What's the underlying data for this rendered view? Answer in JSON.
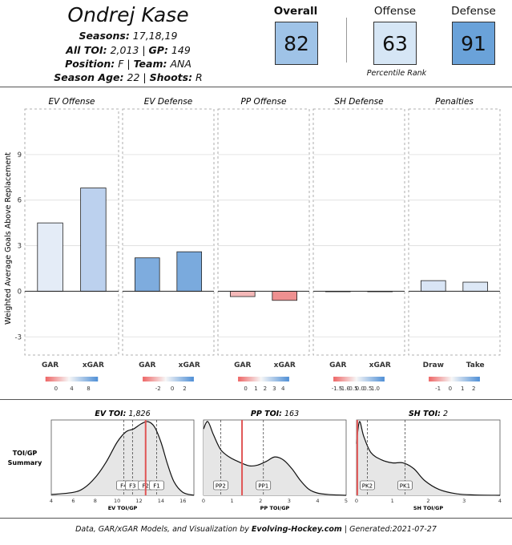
{
  "header": {
    "player_name": "Ondrej Kase",
    "seasons_label": "Seasons:",
    "seasons_value": " 17,18,19",
    "toi_label": "All TOI:",
    "toi_value": " 2,013 | ",
    "gp_label": "GP:",
    "gp_value": " 149",
    "position_label": "Position:",
    "position_value": " F | ",
    "team_label": "Team:",
    "team_value": " ANA",
    "age_label": "Season Age:",
    "age_value": " 22 | ",
    "shoots_label": "Shoots:",
    "shoots_value": " R"
  },
  "scores": {
    "overall_label": "Overall",
    "overall_value": "82",
    "offense_label": "Offense",
    "offense_value": "63",
    "defense_label": "Defense",
    "defense_value": "91",
    "percentile_note": "Percentile Rank",
    "colors": {
      "overall": "#9fc3e7",
      "offense": "#d6e6f5",
      "defense": "#6aa2d9"
    }
  },
  "chart_data": [
    {
      "type": "bar",
      "ylabel": "Weighted Average Goals Above Replacement",
      "ylim": [
        -4.2,
        12
      ],
      "yticks": [
        -3,
        0,
        3,
        6,
        9
      ],
      "panels": [
        {
          "title": "EV Offense",
          "categories": [
            "GAR",
            "xGAR"
          ],
          "values": [
            4.5,
            6.8
          ],
          "colors": [
            "#e4ecf7",
            "#bcd1ee"
          ],
          "legend": {
            "ticks": [
              "0",
              "4",
              "8"
            ],
            "tick_pos": [
              0.2,
              0.5,
              0.82
            ]
          }
        },
        {
          "title": "EV Defense",
          "categories": [
            "GAR",
            "xGAR"
          ],
          "values": [
            2.2,
            2.6
          ],
          "colors": [
            "#7eacde",
            "#7aaadd"
          ],
          "legend": {
            "ticks": [
              "-2",
              "0",
              "2"
            ],
            "tick_pos": [
              0.3,
              0.58,
              0.82
            ]
          }
        },
        {
          "title": "PP Offense",
          "categories": [
            "GAR",
            "xGAR"
          ],
          "values": [
            -0.35,
            -0.6
          ],
          "colors": [
            "#f4b8b8",
            "#ee9090"
          ],
          "legend": {
            "ticks": [
              "0",
              "1",
              "2",
              "3",
              "4"
            ],
            "tick_pos": [
              0.15,
              0.35,
              0.53,
              0.71,
              0.88
            ]
          }
        },
        {
          "title": "SH Defense",
          "categories": [
            "GAR",
            "xGAR"
          ],
          "values": [
            -0.03,
            -0.03
          ],
          "colors": [
            "#f0e4e4",
            "#f0e4e4"
          ],
          "legend": {
            "ticks": [
              "-1.5",
              "-1.0",
              "-0.5",
              "0.0",
              "0.5",
              "1.0"
            ],
            "tick_pos": [
              0.07,
              0.22,
              0.37,
              0.52,
              0.67,
              0.82
            ]
          }
        },
        {
          "title": "Penalties",
          "categories": [
            "Draw",
            "Take"
          ],
          "values": [
            0.7,
            0.6
          ],
          "colors": [
            "#d9e5f5",
            "#dde8f6"
          ],
          "legend": {
            "ticks": [
              "-1",
              "0",
              "1",
              "2"
            ],
            "tick_pos": [
              0.18,
              0.42,
              0.66,
              0.88
            ]
          }
        }
      ]
    },
    {
      "type": "area",
      "row_label_line1": "TOI/GP",
      "row_label_line2": "Summary",
      "panels": [
        {
          "title_label": "EV TOI:",
          "title_value": " 1,826",
          "xlabel": "EV TOI/GP",
          "xlim": [
            4,
            17
          ],
          "xticks": [
            4,
            6,
            8,
            10,
            12,
            14,
            16
          ],
          "player_value": 12.6,
          "markers": [
            {
              "label": "F4",
              "x": 10.6
            },
            {
              "label": "F3",
              "x": 11.4
            },
            {
              "label": "F2",
              "x": 12.6
            },
            {
              "label": "F1",
              "x": 13.6
            }
          ],
          "density_x": [
            4,
            6,
            7,
            8,
            9,
            10,
            10.8,
            11.5,
            12.2,
            12.8,
            13.4,
            14,
            14.6,
            15.2,
            16,
            17
          ],
          "density_y": [
            0.01,
            0.04,
            0.1,
            0.24,
            0.45,
            0.72,
            0.86,
            0.9,
            0.97,
            1.0,
            0.93,
            0.72,
            0.42,
            0.18,
            0.04,
            0.0
          ]
        },
        {
          "title_label": "PP TOI:",
          "title_value": " 163",
          "xlabel": "PP TOI/GP",
          "xlim": [
            0,
            5
          ],
          "xticks": [
            0,
            1,
            2,
            3,
            4,
            5
          ],
          "player_value": 1.35,
          "markers": [
            {
              "label": "PP2",
              "x": 0.6
            },
            {
              "label": "PP1",
              "x": 2.1
            }
          ],
          "density_x": [
            0,
            0.15,
            0.35,
            0.6,
            0.9,
            1.2,
            1.6,
            1.9,
            2.2,
            2.5,
            2.8,
            3.1,
            3.4,
            3.7,
            4.0,
            4.4,
            5.0
          ],
          "density_y": [
            0.9,
            1.0,
            0.82,
            0.62,
            0.52,
            0.46,
            0.4,
            0.41,
            0.46,
            0.52,
            0.48,
            0.36,
            0.2,
            0.08,
            0.03,
            0.01,
            0.0
          ]
        },
        {
          "title_label": "SH TOI:",
          "title_value": " 2",
          "xlabel": "SH TOI/GP",
          "xlim": [
            0,
            4
          ],
          "xticks": [
            0,
            1,
            2,
            3,
            4
          ],
          "player_value": 0.02,
          "markers": [
            {
              "label": "PK2",
              "x": 0.3
            },
            {
              "label": "PK1",
              "x": 1.35
            }
          ],
          "density_x": [
            0,
            0.08,
            0.2,
            0.4,
            0.7,
            1.0,
            1.3,
            1.6,
            1.9,
            2.3,
            2.8,
            3.3,
            4.0
          ],
          "density_y": [
            0.7,
            1.0,
            0.8,
            0.58,
            0.48,
            0.44,
            0.44,
            0.36,
            0.2,
            0.08,
            0.02,
            0.005,
            0.0
          ]
        }
      ]
    }
  ],
  "footer": {
    "text_prefix": "Data, GAR/xGAR Models, and Visualization by ",
    "brand": "Evolving-Hockey.com",
    "text_suffix": " | Generated:2021-07-27"
  }
}
